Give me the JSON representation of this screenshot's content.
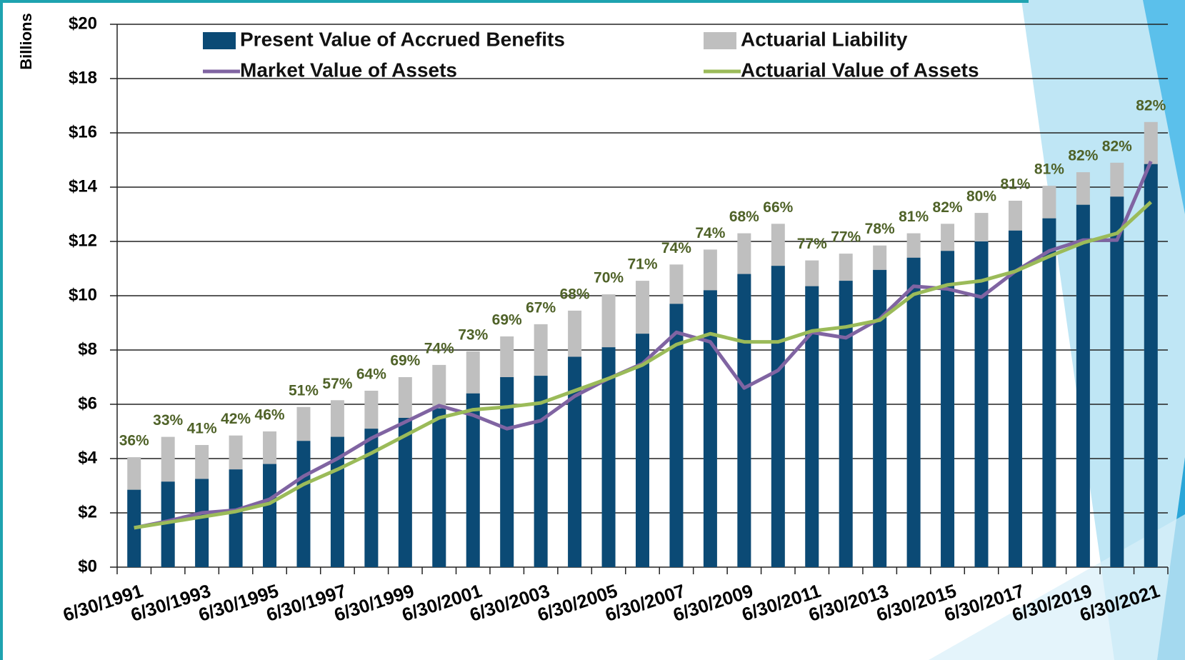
{
  "chart_data": {
    "type": "bar",
    "y_label": "Billions",
    "categories": [
      "6/30/1991",
      null,
      "6/30/1993",
      null,
      "6/30/1995",
      null,
      "6/30/1997",
      null,
      "6/30/1999",
      null,
      "6/30/2001",
      null,
      "6/30/2003",
      null,
      "6/30/2005",
      null,
      "6/30/2007",
      null,
      "6/30/2009",
      null,
      "6/30/2011",
      null,
      "6/30/2013",
      null,
      "6/30/2015",
      null,
      "6/30/2017",
      null,
      "6/30/2019",
      null,
      "6/30/2021"
    ],
    "series": [
      {
        "name": "Actuarial Liability",
        "type": "bar",
        "color": "#bfbfbf",
        "values": [
          4.05,
          4.8,
          4.5,
          4.85,
          5.0,
          5.9,
          6.15,
          6.5,
          7.0,
          7.45,
          7.95,
          8.5,
          8.95,
          9.45,
          10.05,
          10.55,
          11.15,
          11.7,
          12.3,
          12.65,
          11.3,
          11.55,
          11.85,
          12.3,
          12.65,
          13.05,
          13.5,
          14.05,
          14.55,
          14.9,
          16.4
        ]
      },
      {
        "name": "Present Value of Accrued Benefits",
        "type": "bar",
        "color": "#0b4a75",
        "values": [
          2.85,
          3.15,
          3.25,
          3.6,
          3.8,
          4.65,
          4.8,
          5.1,
          5.5,
          5.85,
          6.4,
          7.0,
          7.05,
          7.75,
          8.1,
          8.6,
          9.7,
          10.2,
          10.8,
          11.1,
          10.35,
          10.55,
          10.95,
          11.4,
          11.65,
          12.0,
          12.4,
          12.85,
          13.35,
          13.65,
          14.85
        ]
      },
      {
        "name": "Market Value of Assets",
        "type": "line",
        "color": "#8064a2",
        "values": [
          1.45,
          1.7,
          2.0,
          2.1,
          2.5,
          3.35,
          4.0,
          4.75,
          5.35,
          5.95,
          5.6,
          5.1,
          5.4,
          6.3,
          6.95,
          7.5,
          8.65,
          8.3,
          6.6,
          7.25,
          8.65,
          8.45,
          9.15,
          10.35,
          10.25,
          9.95,
          10.9,
          11.65,
          12.05,
          12.05,
          14.95
        ]
      },
      {
        "name": "Actuarial Value of Assets",
        "type": "line",
        "color": "#9bbb59",
        "values": [
          1.45,
          1.65,
          1.85,
          2.05,
          2.35,
          3.05,
          3.6,
          4.2,
          4.85,
          5.5,
          5.8,
          5.9,
          6.05,
          6.5,
          6.95,
          7.45,
          8.2,
          8.6,
          8.3,
          8.3,
          8.7,
          8.85,
          9.1,
          10.05,
          10.4,
          10.55,
          10.9,
          11.45,
          11.95,
          12.3,
          13.45
        ]
      }
    ],
    "annotations": [
      "36%",
      "33%",
      "41%",
      "42%",
      "46%",
      "51%",
      "57%",
      "64%",
      "69%",
      "74%",
      "73%",
      "69%",
      "67%",
      "68%",
      "70%",
      "71%",
      "74%",
      "74%",
      "68%",
      "66%",
      "77%",
      "77%",
      "78%",
      "81%",
      "82%",
      "80%",
      "81%",
      "81%",
      "82%",
      "82%",
      "82%"
    ],
    "annotation_color": "#4f6228",
    "ylim": [
      0,
      20
    ],
    "yticks": [
      {
        "value": 0,
        "label": "$0"
      },
      {
        "value": 2,
        "label": "$2"
      },
      {
        "value": 4,
        "label": "$4"
      },
      {
        "value": 6,
        "label": "$6"
      },
      {
        "value": 8,
        "label": "$8"
      },
      {
        "value": 10,
        "label": "$10"
      },
      {
        "value": 12,
        "label": "$12"
      },
      {
        "value": 14,
        "label": "$14"
      },
      {
        "value": 16,
        "label": "$16"
      },
      {
        "value": 18,
        "label": "$18"
      },
      {
        "value": 20,
        "label": "$20"
      }
    ],
    "grid": true
  }
}
